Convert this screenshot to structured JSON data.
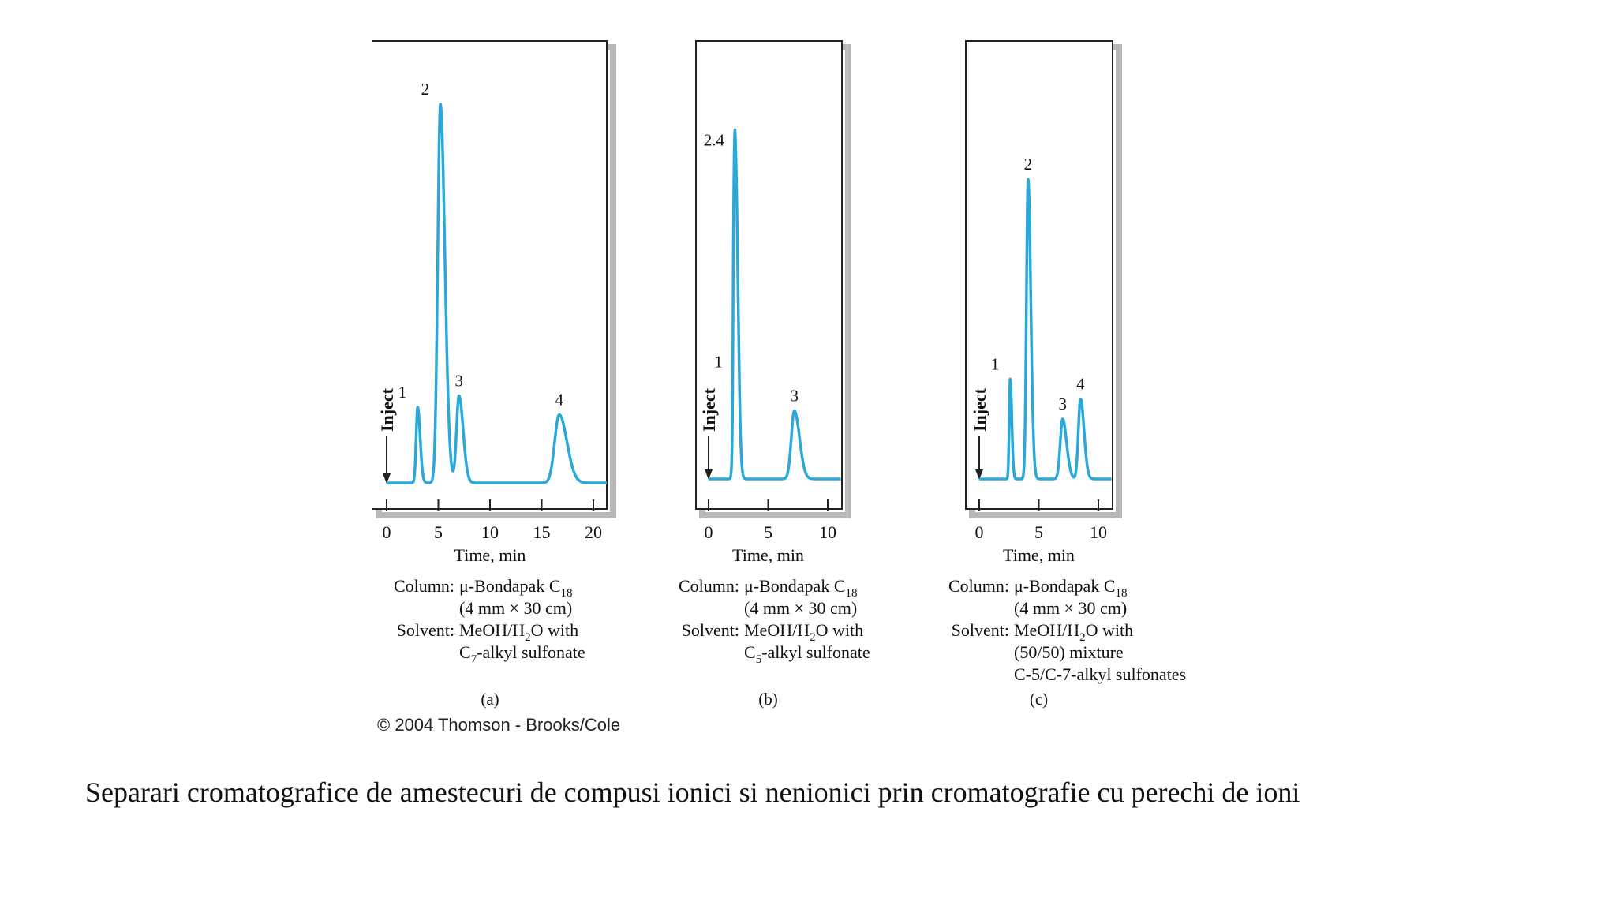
{
  "copyright": "© 2004 Thomson - Brooks/Cole",
  "caption": "Separari cromatografice de amestecuri de compusi ionici si nenionici prin cromatografie cu perechi de ioni",
  "colors": {
    "trace": "#29a8d9",
    "frame": "#222222",
    "shadow": "#9a9a9a"
  },
  "chart_data": [
    {
      "type": "line",
      "panel_label": "(a)",
      "xlabel": "Time, min",
      "xlim": [
        -0.5,
        21.5
      ],
      "xticks": [
        "0",
        "5",
        "10",
        "15",
        "20"
      ],
      "xtick_values": [
        0,
        5,
        10,
        15,
        20
      ],
      "inject_label": "Inject",
      "frame": "top-right-bottom",
      "peaks": [
        {
          "label": "1",
          "time": 3.0,
          "height": 0.2,
          "width": 0.18
        },
        {
          "label": "2",
          "time": 5.2,
          "height": 1.0,
          "width": 0.32
        },
        {
          "label": "3",
          "time": 7.0,
          "height": 0.23,
          "width": 0.3
        },
        {
          "label": "4",
          "time": 16.7,
          "height": 0.18,
          "width": 0.55
        }
      ],
      "conditions": [
        {
          "key": "Column:",
          "value": "μ-Bondapak C",
          "sub": "18"
        },
        {
          "key": "",
          "value": "(4 mm × 30 cm)"
        },
        {
          "key": "Solvent:",
          "value": "MeOH/H",
          "sub": "2",
          "value_after": "O with"
        },
        {
          "key": "",
          "value": "C",
          "sub": "7",
          "value_after": "-alkyl sulfonate"
        }
      ]
    },
    {
      "type": "line",
      "panel_label": "(b)",
      "xlabel": "Time, min",
      "xlim": [
        -1.2,
        11.3
      ],
      "xticks": [
        "0",
        "5",
        "10"
      ],
      "xtick_values": [
        0,
        5,
        10
      ],
      "inject_label": "Inject",
      "frame": "box",
      "peaks": [
        {
          "label": "1",
          "time": 2.1,
          "height": 0.3,
          "width": 0.06
        },
        {
          "label": "2.4",
          "time": 2.25,
          "height": 0.95,
          "width": 0.16
        },
        {
          "label": "3",
          "time": 7.2,
          "height": 0.2,
          "width": 0.32
        }
      ],
      "conditions": [
        {
          "key": "Column:",
          "value": "μ-Bondapak C",
          "sub": "18"
        },
        {
          "key": "",
          "value": "(4 mm × 30 cm)"
        },
        {
          "key": "Solvent:",
          "value": "MeOH/H",
          "sub": "2",
          "value_after": "O with"
        },
        {
          "key": "",
          "value": "C",
          "sub": "5",
          "value_after": "-alkyl sulfonate"
        }
      ]
    },
    {
      "type": "line",
      "panel_label": "(c)",
      "xlabel": "Time, min",
      "xlim": [
        -1.2,
        11.3
      ],
      "xticks": [
        "0",
        "5",
        "10"
      ],
      "xtick_values": [
        0,
        5,
        10
      ],
      "inject_label": "Inject",
      "frame": "box",
      "peaks": [
        {
          "label": "1",
          "time": 2.6,
          "height": 0.3,
          "width": 0.1
        },
        {
          "label": "2",
          "time": 4.1,
          "height": 0.9,
          "width": 0.17
        },
        {
          "label": "3",
          "time": 7.0,
          "height": 0.18,
          "width": 0.25
        },
        {
          "label": "4",
          "time": 8.5,
          "height": 0.24,
          "width": 0.22
        }
      ],
      "conditions": [
        {
          "key": "Column:",
          "value": "μ-Bondapak C",
          "sub": "18"
        },
        {
          "key": "",
          "value": "(4 mm × 30 cm)"
        },
        {
          "key": "Solvent:",
          "value": "MeOH/H",
          "sub": "2",
          "value_after": "O with"
        },
        {
          "key": "",
          "value": "(50/50) mixture"
        },
        {
          "key": "",
          "value": "C-5/C-7-alkyl sulfonates"
        }
      ]
    }
  ]
}
